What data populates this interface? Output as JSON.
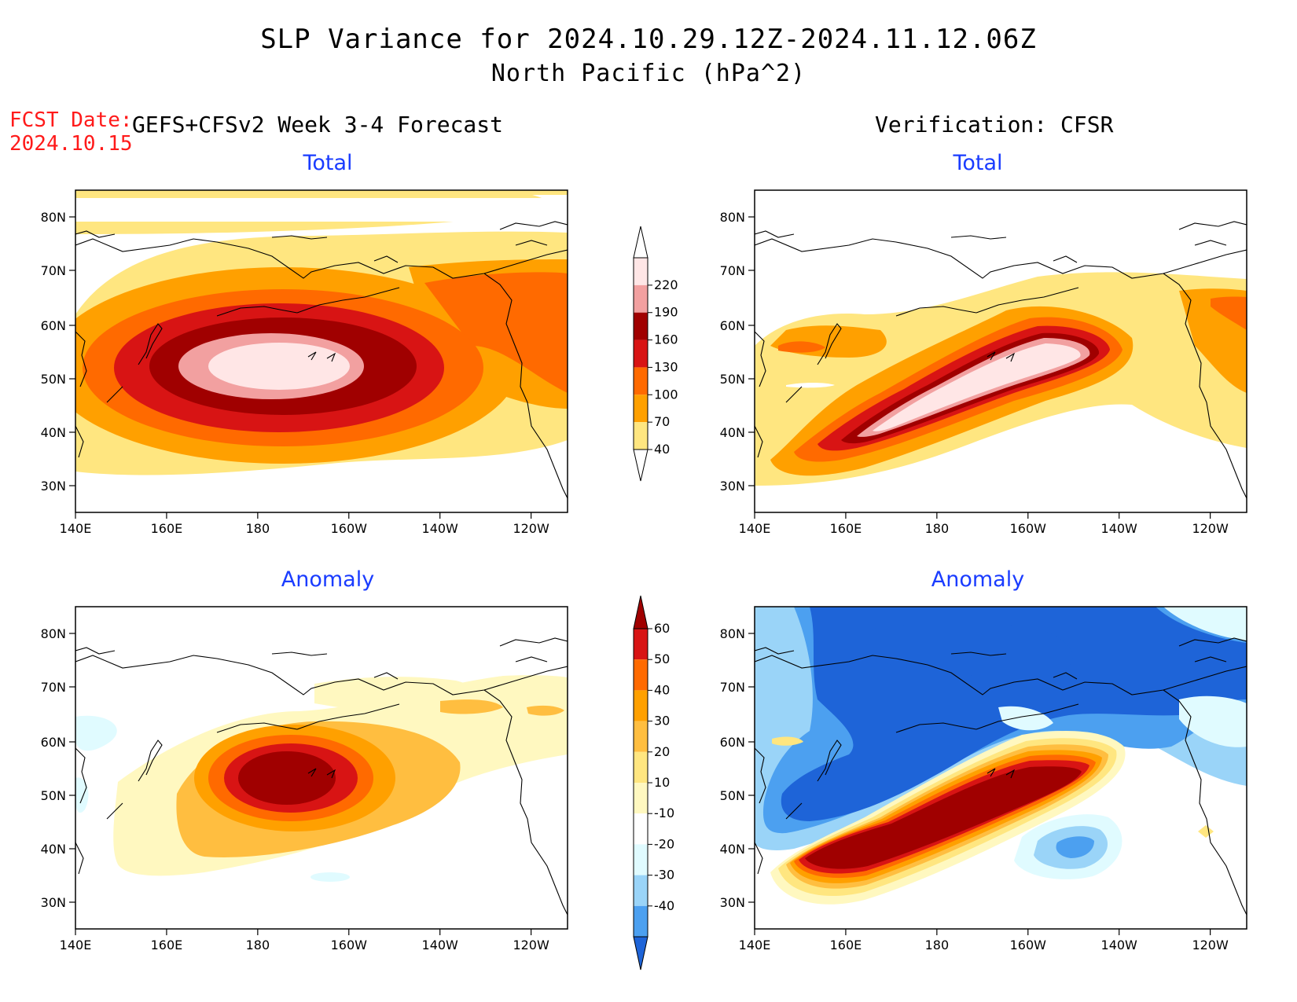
{
  "title": {
    "line1": "SLP Variance for 2024.10.29.12Z-2024.11.12.06Z",
    "line2": "North Pacific (hPa^2)"
  },
  "fcst_date": {
    "label": "FCST Date:",
    "value": "2024.10.15"
  },
  "left_header": "GEFS+CFSv2 Week 3-4 Forecast",
  "right_header": "Verification: CFSR",
  "panels": {
    "fc_total": {
      "title": "Total"
    },
    "ver_total": {
      "title": "Total"
    },
    "fc_anom": {
      "title": "Anomaly"
    },
    "ver_anom": {
      "title": "Anomaly"
    }
  },
  "axes": {
    "lon_labels": [
      "140E",
      "160E",
      "180",
      "160W",
      "140W",
      "120W"
    ],
    "lat_labels": [
      "80N",
      "70N",
      "60N",
      "50N",
      "40N",
      "30N"
    ]
  },
  "colorbar_total": {
    "levels": [
      "220",
      "190",
      "160",
      "130",
      "100",
      "70",
      "40"
    ],
    "colors": [
      "#ffe6e6",
      "#f2a0a0",
      "#a00000",
      "#d81414",
      "#ff6a00",
      "#ffa000",
      "#ffe680"
    ]
  },
  "colorbar_anom": {
    "levels": [
      "60",
      "50",
      "40",
      "30",
      "20",
      "10",
      "-10",
      "-20",
      "-30",
      "-40"
    ],
    "colors": [
      "#a00000",
      "#d81414",
      "#ff6a00",
      "#ffa000",
      "#ffbe40",
      "#ffe680",
      "#fff8c0",
      "#ffffff",
      "#e0fbff",
      "#9ad4f8",
      "#4ca0f0",
      "#1e64d8"
    ]
  }
}
